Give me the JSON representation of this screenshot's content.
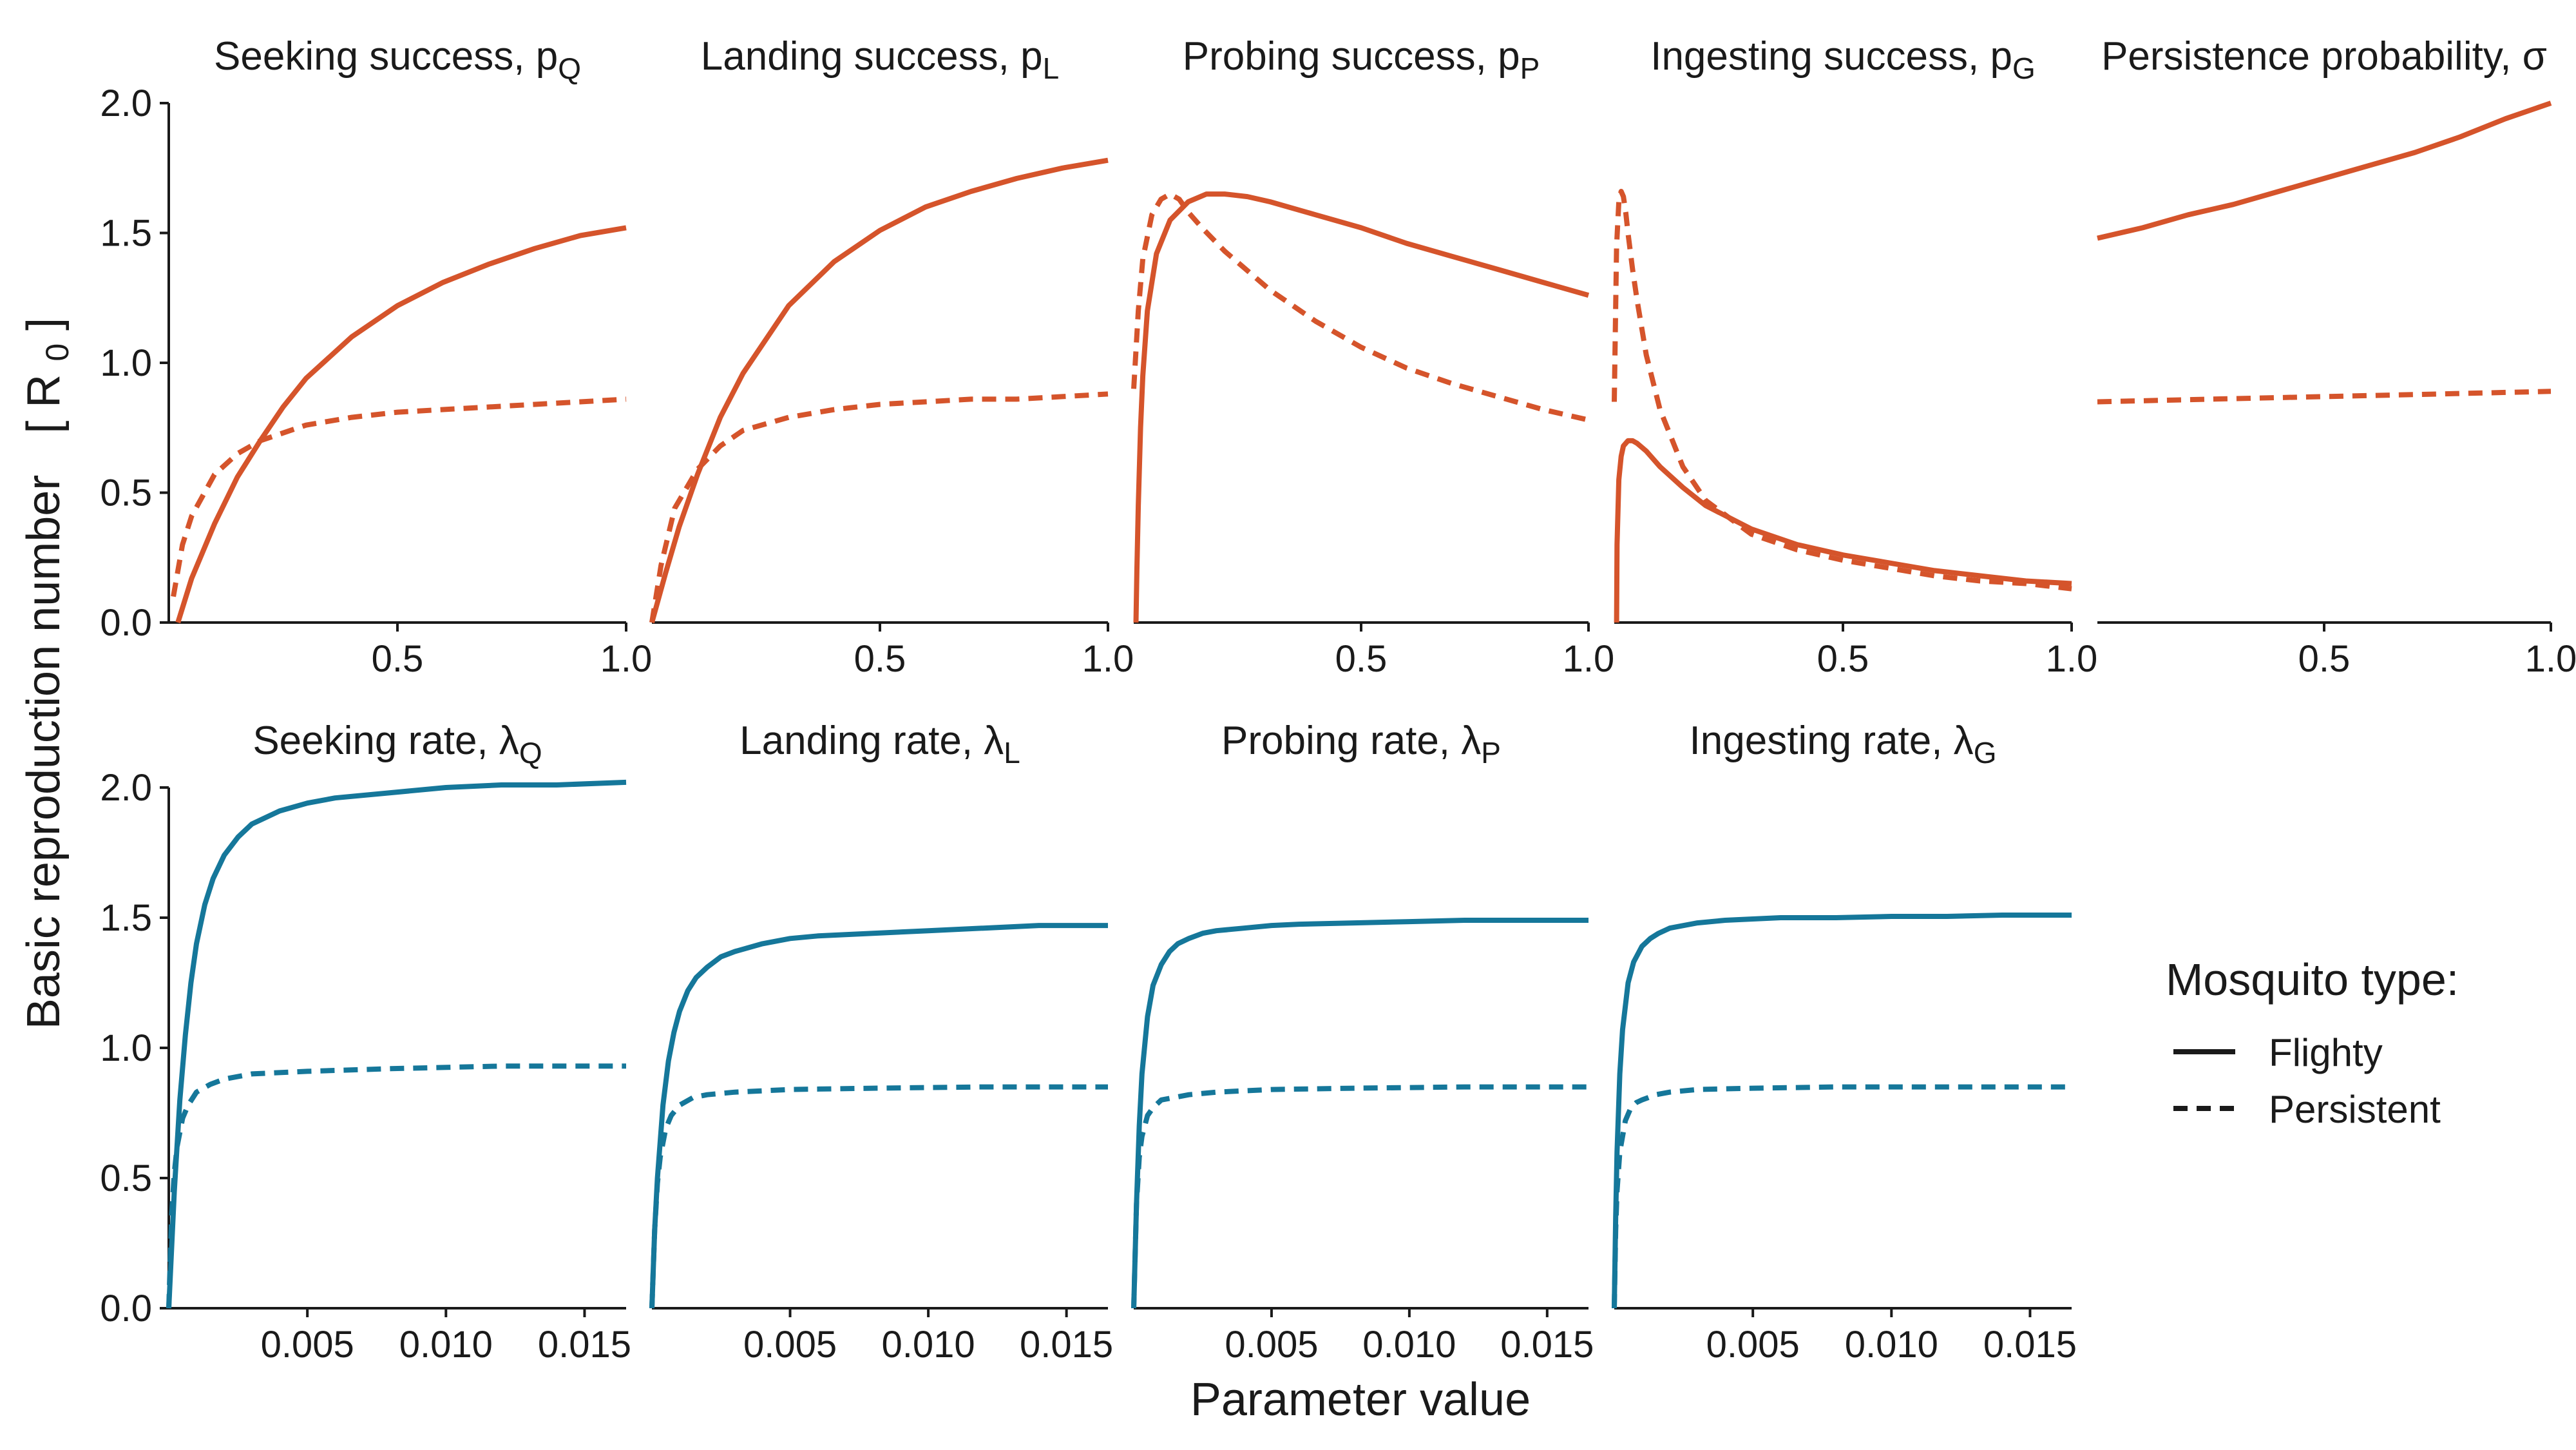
{
  "colors": {
    "orange": "#d5542b",
    "blue": "#15779a",
    "axis": "#1a1a1a"
  },
  "chart_data": {
    "type": "line",
    "xlabel": "Parameter value",
    "ylabel_main": "Basic reproduction number",
    "ylabel_symbol": "R",
    "ylabel_symbol_sub": "0",
    "ylim": [
      0,
      2
    ],
    "yticks": [
      "0.0",
      "0.5",
      "1.0",
      "1.5",
      "2.0"
    ],
    "legend": {
      "title": "Mosquito type:",
      "placement": "right",
      "entries": [
        {
          "label": "Flighty",
          "style": "solid"
        },
        {
          "label": "Persistent",
          "style": "dashed"
        }
      ]
    },
    "panels": [
      {
        "title_main": "Seeking success, p",
        "title_sub": "Q",
        "xlim": [
          0,
          1
        ],
        "xticks": [
          "0.5",
          "1.0"
        ],
        "color": "orange",
        "series": [
          {
            "style": "solid",
            "x": [
              0.02,
              0.05,
              0.1,
              0.15,
              0.2,
              0.25,
              0.3,
              0.4,
              0.5,
              0.6,
              0.7,
              0.8,
              0.9,
              1.0
            ],
            "y": [
              0.0,
              0.17,
              0.38,
              0.56,
              0.7,
              0.83,
              0.94,
              1.1,
              1.22,
              1.31,
              1.38,
              1.44,
              1.49,
              1.52
            ]
          },
          {
            "style": "dashed",
            "x": [
              0.01,
              0.03,
              0.05,
              0.1,
              0.15,
              0.2,
              0.3,
              0.4,
              0.5,
              0.6,
              0.7,
              0.8,
              0.9,
              1.0
            ],
            "y": [
              0.1,
              0.3,
              0.41,
              0.57,
              0.65,
              0.7,
              0.76,
              0.79,
              0.81,
              0.82,
              0.83,
              0.84,
              0.85,
              0.86
            ]
          }
        ]
      },
      {
        "title_main": "Landing success, p",
        "title_sub": "L",
        "xlim": [
          0,
          1
        ],
        "xticks": [
          "0.5",
          "1.0"
        ],
        "color": "orange",
        "series": [
          {
            "style": "solid",
            "x": [
              0.0,
              0.03,
              0.06,
              0.1,
              0.15,
              0.2,
              0.3,
              0.4,
              0.5,
              0.6,
              0.7,
              0.8,
              0.9,
              1.0
            ],
            "y": [
              0.0,
              0.19,
              0.37,
              0.57,
              0.79,
              0.96,
              1.22,
              1.39,
              1.51,
              1.6,
              1.66,
              1.71,
              1.75,
              1.78
            ]
          },
          {
            "style": "dashed",
            "x": [
              0.0,
              0.02,
              0.05,
              0.1,
              0.15,
              0.2,
              0.3,
              0.4,
              0.5,
              0.6,
              0.7,
              0.8,
              0.9,
              1.0
            ],
            "y": [
              0.0,
              0.22,
              0.44,
              0.59,
              0.68,
              0.74,
              0.79,
              0.82,
              0.84,
              0.85,
              0.86,
              0.86,
              0.87,
              0.88
            ]
          }
        ]
      },
      {
        "title_main": "Probing success, p",
        "title_sub": "P",
        "xlim": [
          0,
          1
        ],
        "xticks": [
          "0.5",
          "1.0"
        ],
        "color": "orange",
        "series": [
          {
            "style": "solid",
            "x": [
              0.005,
              0.007,
              0.01,
              0.015,
              0.02,
              0.03,
              0.05,
              0.08,
              0.12,
              0.16,
              0.2,
              0.25,
              0.3,
              0.4,
              0.5,
              0.6,
              0.7,
              0.8,
              0.9,
              1.0
            ],
            "y": [
              0.0,
              0.2,
              0.45,
              0.75,
              0.95,
              1.2,
              1.42,
              1.55,
              1.62,
              1.65,
              1.65,
              1.64,
              1.62,
              1.57,
              1.52,
              1.46,
              1.41,
              1.36,
              1.31,
              1.26
            ]
          },
          {
            "style": "dashed",
            "x": [
              0.0,
              0.01,
              0.02,
              0.04,
              0.06,
              0.08,
              0.1,
              0.12,
              0.15,
              0.2,
              0.3,
              0.4,
              0.5,
              0.6,
              0.7,
              0.8,
              0.9,
              1.0
            ],
            "y": [
              0.9,
              1.2,
              1.4,
              1.57,
              1.63,
              1.65,
              1.63,
              1.58,
              1.52,
              1.43,
              1.28,
              1.16,
              1.06,
              0.98,
              0.92,
              0.87,
              0.82,
              0.78
            ]
          }
        ]
      },
      {
        "title_main": "Ingesting success, p",
        "title_sub": "G",
        "xlim": [
          0,
          1
        ],
        "xticks": [
          "0.5",
          "1.0"
        ],
        "color": "orange",
        "series": [
          {
            "style": "solid",
            "x": [
              0.005,
              0.006,
              0.01,
              0.015,
              0.02,
              0.03,
              0.04,
              0.05,
              0.07,
              0.1,
              0.15,
              0.2,
              0.3,
              0.4,
              0.5,
              0.6,
              0.7,
              0.8,
              0.9,
              1.0
            ],
            "y": [
              0.0,
              0.3,
              0.55,
              0.64,
              0.68,
              0.7,
              0.7,
              0.69,
              0.66,
              0.6,
              0.52,
              0.45,
              0.36,
              0.3,
              0.26,
              0.23,
              0.2,
              0.18,
              0.16,
              0.15
            ]
          },
          {
            "style": "dashed",
            "x": [
              0.0,
              0.005,
              0.01,
              0.015,
              0.02,
              0.025,
              0.03,
              0.04,
              0.05,
              0.07,
              0.1,
              0.15,
              0.2,
              0.3,
              0.4,
              0.5,
              0.6,
              0.7,
              0.8,
              0.9,
              1.0
            ],
            "y": [
              0.85,
              1.45,
              1.62,
              1.66,
              1.64,
              1.58,
              1.5,
              1.36,
              1.24,
              1.03,
              0.82,
              0.6,
              0.47,
              0.34,
              0.28,
              0.24,
              0.21,
              0.18,
              0.16,
              0.15,
              0.13
            ]
          }
        ]
      },
      {
        "title_main": "Persistence probability, σ",
        "title_sub": "",
        "xlim": [
          0,
          1
        ],
        "xticks": [
          "0.5",
          "1.0"
        ],
        "color": "orange",
        "series": [
          {
            "style": "solid",
            "x": [
              0.0,
              0.1,
              0.2,
              0.3,
              0.4,
              0.5,
              0.6,
              0.7,
              0.8,
              0.9,
              1.0
            ],
            "y": [
              1.48,
              1.52,
              1.57,
              1.61,
              1.66,
              1.71,
              1.76,
              1.81,
              1.87,
              1.94,
              2.0
            ]
          },
          {
            "style": "dashed",
            "x": [
              0.0,
              0.25,
              0.5,
              0.75,
              1.0
            ],
            "y": [
              0.85,
              0.86,
              0.87,
              0.88,
              0.89
            ]
          }
        ]
      },
      {
        "title_main": "Seeking rate, λ",
        "title_sub": "Q",
        "xlim": [
          0,
          0.0165
        ],
        "xticks": [
          "0.005",
          "0.010",
          "0.015"
        ],
        "color": "blue",
        "series": [
          {
            "style": "solid",
            "x": [
              0.0,
              0.0002,
              0.0004,
              0.0006,
              0.0008,
              0.001,
              0.0013,
              0.0016,
              0.002,
              0.0025,
              0.003,
              0.004,
              0.005,
              0.006,
              0.008,
              0.01,
              0.012,
              0.014,
              0.0165
            ],
            "y": [
              0.0,
              0.45,
              0.8,
              1.05,
              1.25,
              1.4,
              1.55,
              1.65,
              1.74,
              1.81,
              1.86,
              1.91,
              1.94,
              1.96,
              1.98,
              2.0,
              2.01,
              2.01,
              2.02
            ]
          },
          {
            "style": "dashed",
            "x": [
              0.0,
              0.0001,
              0.0002,
              0.0003,
              0.0005,
              0.0007,
              0.001,
              0.0015,
              0.002,
              0.003,
              0.005,
              0.008,
              0.012,
              0.0165
            ],
            "y": [
              0.0,
              0.35,
              0.52,
              0.62,
              0.73,
              0.78,
              0.83,
              0.86,
              0.88,
              0.9,
              0.91,
              0.92,
              0.93,
              0.93
            ]
          }
        ]
      },
      {
        "title_main": "Landing rate, λ",
        "title_sub": "L",
        "xlim": [
          0,
          0.0165
        ],
        "xticks": [
          "0.005",
          "0.010",
          "0.015"
        ],
        "color": "blue",
        "series": [
          {
            "style": "solid",
            "x": [
              0.0,
              0.0001,
              0.0002,
              0.0004,
              0.0006,
              0.0008,
              0.001,
              0.0013,
              0.0016,
              0.002,
              0.0025,
              0.003,
              0.004,
              0.005,
              0.006,
              0.008,
              0.01,
              0.012,
              0.014,
              0.0165
            ],
            "y": [
              0.0,
              0.3,
              0.5,
              0.78,
              0.95,
              1.06,
              1.14,
              1.22,
              1.27,
              1.31,
              1.35,
              1.37,
              1.4,
              1.42,
              1.43,
              1.44,
              1.45,
              1.46,
              1.47,
              1.47
            ]
          },
          {
            "style": "dashed",
            "x": [
              0.0,
              0.0001,
              0.0002,
              0.0003,
              0.0005,
              0.0007,
              0.001,
              0.0015,
              0.002,
              0.003,
              0.005,
              0.008,
              0.012,
              0.0165
            ],
            "y": [
              0.0,
              0.3,
              0.48,
              0.58,
              0.69,
              0.74,
              0.78,
              0.81,
              0.82,
              0.83,
              0.84,
              0.845,
              0.85,
              0.85
            ]
          }
        ]
      },
      {
        "title_main": "Probing rate, λ",
        "title_sub": "P",
        "xlim": [
          0,
          0.0165
        ],
        "xticks": [
          "0.005",
          "0.010",
          "0.015"
        ],
        "color": "blue",
        "series": [
          {
            "style": "solid",
            "x": [
              0.0,
              0.0001,
              0.0002,
              0.0003,
              0.0005,
              0.0007,
              0.001,
              0.0013,
              0.0016,
              0.002,
              0.0025,
              0.003,
              0.004,
              0.005,
              0.006,
              0.008,
              0.01,
              0.012,
              0.014,
              0.0165
            ],
            "y": [
              0.0,
              0.4,
              0.7,
              0.9,
              1.12,
              1.24,
              1.32,
              1.37,
              1.4,
              1.42,
              1.44,
              1.45,
              1.46,
              1.47,
              1.475,
              1.48,
              1.485,
              1.49,
              1.49,
              1.49
            ]
          },
          {
            "style": "dashed",
            "x": [
              0.0,
              0.0001,
              0.0002,
              0.0003,
              0.0005,
              0.0007,
              0.001,
              0.0015,
              0.002,
              0.003,
              0.005,
              0.008,
              0.012,
              0.0165
            ],
            "y": [
              0.0,
              0.4,
              0.58,
              0.66,
              0.74,
              0.77,
              0.8,
              0.81,
              0.82,
              0.83,
              0.84,
              0.845,
              0.85,
              0.85
            ]
          }
        ]
      },
      {
        "title_main": "Ingesting rate, λ",
        "title_sub": "G",
        "xlim": [
          0,
          0.0165
        ],
        "xticks": [
          "0.005",
          "0.010",
          "0.015"
        ],
        "color": "blue",
        "series": [
          {
            "style": "solid",
            "x": [
              0.0,
              5e-05,
              0.0001,
              0.0002,
              0.0003,
              0.0005,
              0.0007,
              0.001,
              0.0013,
              0.0016,
              0.002,
              0.003,
              0.004,
              0.005,
              0.006,
              0.008,
              0.01,
              0.012,
              0.014,
              0.0165
            ],
            "y": [
              0.0,
              0.35,
              0.6,
              0.9,
              1.07,
              1.25,
              1.33,
              1.39,
              1.42,
              1.44,
              1.46,
              1.48,
              1.49,
              1.495,
              1.5,
              1.5,
              1.505,
              1.505,
              1.51,
              1.51
            ]
          },
          {
            "style": "dashed",
            "x": [
              0.0,
              5e-05,
              0.0001,
              0.0002,
              0.0004,
              0.0006,
              0.0008,
              0.001,
              0.0015,
              0.002,
              0.003,
              0.005,
              0.008,
              0.012,
              0.0165
            ],
            "y": [
              0.0,
              0.3,
              0.45,
              0.6,
              0.72,
              0.77,
              0.79,
              0.8,
              0.82,
              0.83,
              0.84,
              0.845,
              0.85,
              0.85,
              0.85
            ]
          }
        ]
      }
    ]
  }
}
